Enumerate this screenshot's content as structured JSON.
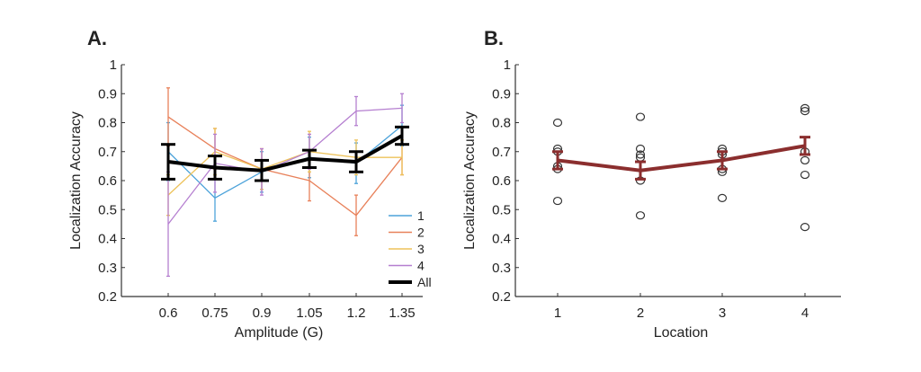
{
  "chart_data": [
    {
      "type": "line",
      "panel_label": "A.",
      "xlabel": "Amplitude (G)",
      "ylabel": "Localization Accuracy",
      "ylim": [
        0.2,
        1
      ],
      "yticks": [
        "0.2",
        "0.3",
        "0.4",
        "0.5",
        "0.6",
        "0.7",
        "0.8",
        "0.9",
        "1"
      ],
      "categories": [
        "0.6",
        "0.75",
        "0.9",
        "1.05",
        "1.2",
        "1.35"
      ],
      "grid": false,
      "legend_position": "bottom-right",
      "series": [
        {
          "name": "1",
          "color": "#4DA3DA",
          "values": [
            0.7,
            0.54,
            0.63,
            0.68,
            0.66,
            0.79
          ],
          "errors": [
            0.1,
            0.08,
            0.07,
            0.07,
            0.07,
            0.07
          ]
        },
        {
          "name": "2",
          "color": "#E8815A",
          "values": [
            0.82,
            0.71,
            0.64,
            0.6,
            0.48,
            0.68
          ],
          "errors": [
            0.1,
            0.07,
            0.07,
            0.07,
            0.07,
            0.06
          ]
        },
        {
          "name": "3",
          "color": "#EDC25A",
          "values": [
            0.55,
            0.7,
            0.64,
            0.7,
            0.68,
            0.68
          ],
          "errors": [
            0.07,
            0.08,
            0.07,
            0.07,
            0.06,
            0.06
          ]
        },
        {
          "name": "4",
          "color": "#B57FD0",
          "values": [
            0.45,
            0.66,
            0.63,
            0.7,
            0.84,
            0.85
          ],
          "errors": [
            0.18,
            0.1,
            0.08,
            0.06,
            0.05,
            0.05
          ]
        },
        {
          "name": "All",
          "color": "#000000",
          "values": [
            0.665,
            0.645,
            0.635,
            0.675,
            0.665,
            0.755
          ],
          "errors": [
            0.06,
            0.04,
            0.035,
            0.03,
            0.035,
            0.03
          ]
        }
      ]
    },
    {
      "type": "scatter",
      "panel_label": "B.",
      "xlabel": "Location",
      "ylabel": "Localization Accuracy",
      "ylim": [
        0.2,
        1
      ],
      "yticks": [
        "0.2",
        "0.3",
        "0.4",
        "0.5",
        "0.6",
        "0.7",
        "0.8",
        "0.9",
        "1"
      ],
      "categories": [
        "1",
        "2",
        "3",
        "4"
      ],
      "grid": false,
      "mean_color": "#8B2E2E",
      "means": [
        0.67,
        0.635,
        0.67,
        0.72
      ],
      "errors": [
        0.03,
        0.03,
        0.03,
        0.03
      ],
      "points": [
        [
          0.8,
          0.71,
          0.7,
          0.65,
          0.64,
          0.53
        ],
        [
          0.82,
          0.71,
          0.69,
          0.68,
          0.6,
          0.48
        ],
        [
          0.71,
          0.7,
          0.69,
          0.64,
          0.63,
          0.54
        ],
        [
          0.85,
          0.84,
          0.7,
          0.67,
          0.62,
          0.44
        ]
      ]
    }
  ]
}
